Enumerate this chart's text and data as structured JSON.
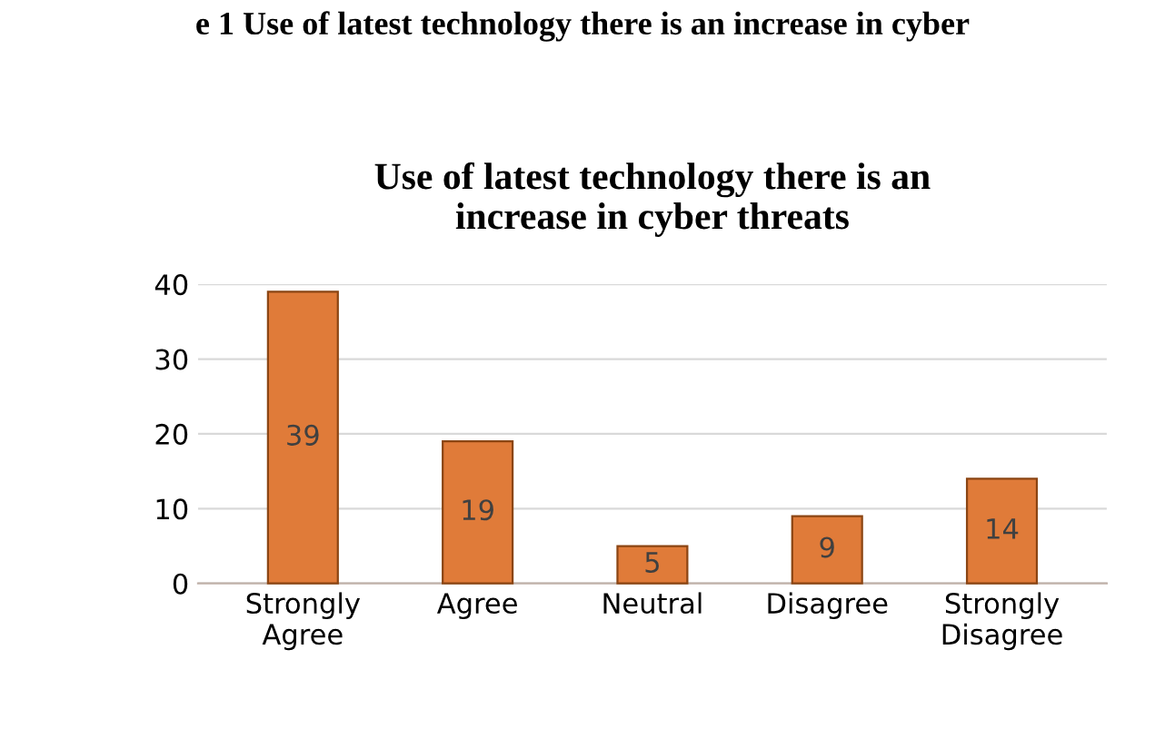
{
  "chart_data": {
    "type": "bar",
    "title": "Use of latest technology there is an\nincrease in cyber threats",
    "annotations": [
      "e 1 Use of latest technology there is an increase in cyber"
    ],
    "categories": [
      "Strongly\nAgree",
      "Agree",
      "Neutral",
      "Disagree",
      "Strongly\nDisagree"
    ],
    "values": [
      39,
      19,
      5,
      9,
      14
    ],
    "color": "#e07b39",
    "ylim": [
      0,
      40
    ],
    "yticks": [
      0,
      10,
      20,
      30,
      40
    ],
    "grid": "y",
    "data_labels": true
  }
}
